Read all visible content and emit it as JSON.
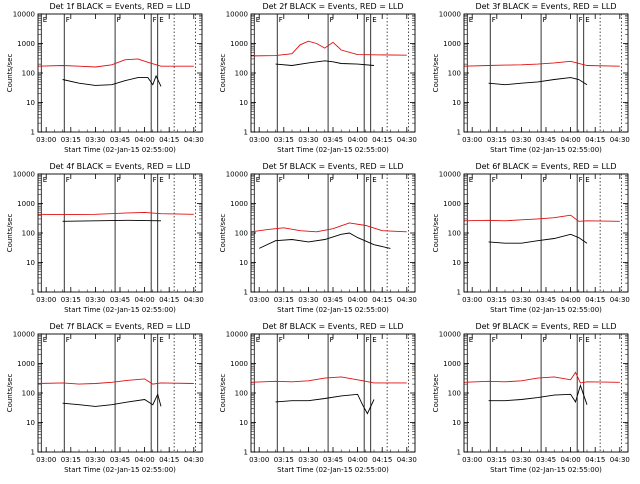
{
  "colors": {
    "events": "#000000",
    "lld": "#e01010",
    "background": "#ffffff"
  },
  "chart_data": [
    {
      "type": "line",
      "title": "Det 1f BLACK = Events, RED = LLD",
      "xlabel": "Start Time (02-Jan-15 02:55:00)",
      "ylabel": "Counts/sec",
      "x_ticks": [
        "03:00",
        "03:15",
        "03:30",
        "03:45",
        "04:00",
        "04:15",
        "04:30"
      ],
      "y_ticks": [
        "1",
        "10",
        "100",
        "1000",
        "10000"
      ],
      "xlim": [
        "02:55",
        "04:35"
      ],
      "ylim": [
        1,
        10000
      ],
      "yscale": "log",
      "series": [
        {
          "name": "Events",
          "x": [
            "03:10",
            "03:20",
            "03:30",
            "03:40",
            "03:48",
            "03:56",
            "04:02",
            "04:05",
            "04:07",
            "04:10"
          ],
          "y": [
            60,
            45,
            38,
            40,
            55,
            70,
            70,
            40,
            80,
            35
          ]
        },
        {
          "name": "LLD",
          "x": [
            "02:55",
            "03:10",
            "03:20",
            "03:30",
            "03:40",
            "03:48",
            "03:56",
            "04:02",
            "04:10",
            "04:30"
          ],
          "y": [
            170,
            180,
            170,
            160,
            190,
            280,
            300,
            230,
            170,
            170
          ]
        }
      ],
      "markers": [
        {
          "label": "E",
          "x": "02:57"
        },
        {
          "label": "F",
          "x": "03:11"
        },
        {
          "label": "F",
          "x": "03:42"
        },
        {
          "label": "F",
          "x": "04:04"
        },
        {
          "label": "E",
          "x": "04:08"
        }
      ],
      "dotted_x": [
        "04:18",
        "04:31"
      ]
    },
    {
      "type": "line",
      "title": "Det 2f BLACK = Events, RED = LLD",
      "xlabel": "Start Time (02-Jan-15 02:55:00)",
      "ylabel": "Counts/sec",
      "x_ticks": [
        "03:00",
        "03:15",
        "03:30",
        "03:45",
        "04:00",
        "04:15",
        "04:30"
      ],
      "y_ticks": [
        "1",
        "10",
        "100",
        "1000",
        "10000"
      ],
      "xlim": [
        "02:55",
        "04:35"
      ],
      "ylim": [
        1,
        10000
      ],
      "yscale": "log",
      "series": [
        {
          "name": "Events",
          "x": [
            "03:10",
            "03:20",
            "03:30",
            "03:40",
            "03:45",
            "03:50",
            "04:00",
            "04:10"
          ],
          "y": [
            200,
            180,
            220,
            260,
            240,
            210,
            200,
            180
          ]
        },
        {
          "name": "LLD",
          "x": [
            "02:55",
            "03:10",
            "03:20",
            "03:25",
            "03:30",
            "03:35",
            "03:40",
            "03:45",
            "03:50",
            "04:00",
            "04:30"
          ],
          "y": [
            380,
            390,
            450,
            900,
            1200,
            1000,
            700,
            1100,
            600,
            420,
            400
          ]
        }
      ],
      "markers": [
        {
          "label": "E",
          "x": "02:57"
        },
        {
          "label": "F",
          "x": "03:11"
        },
        {
          "label": "F",
          "x": "03:42"
        },
        {
          "label": "F",
          "x": "04:04"
        },
        {
          "label": "E",
          "x": "04:08"
        }
      ],
      "dotted_x": [
        "04:18",
        "04:31"
      ]
    },
    {
      "type": "line",
      "title": "Det 3f BLACK = Events, RED = LLD",
      "xlabel": "Start Time (02-Jan-15 02:55:00)",
      "ylabel": "Counts/sec",
      "x_ticks": [
        "03:00",
        "03:15",
        "03:30",
        "03:45",
        "04:00",
        "04:15",
        "04:30"
      ],
      "y_ticks": [
        "1",
        "10",
        "100",
        "1000",
        "10000"
      ],
      "xlim": [
        "02:55",
        "04:35"
      ],
      "ylim": [
        1,
        10000
      ],
      "yscale": "log",
      "series": [
        {
          "name": "Events",
          "x": [
            "03:10",
            "03:20",
            "03:30",
            "03:40",
            "03:50",
            "04:00",
            "04:05",
            "04:10"
          ],
          "y": [
            45,
            40,
            45,
            50,
            60,
            70,
            60,
            40
          ]
        },
        {
          "name": "LLD",
          "x": [
            "02:55",
            "03:10",
            "03:20",
            "03:30",
            "03:40",
            "03:50",
            "04:00",
            "04:10",
            "04:30"
          ],
          "y": [
            170,
            180,
            185,
            190,
            200,
            220,
            250,
            180,
            170
          ]
        }
      ],
      "markers": [
        {
          "label": "E",
          "x": "02:57"
        },
        {
          "label": "F",
          "x": "03:11"
        },
        {
          "label": "F",
          "x": "03:42"
        },
        {
          "label": "F",
          "x": "04:04"
        },
        {
          "label": "E",
          "x": "04:08"
        }
      ],
      "dotted_x": [
        "04:18",
        "04:31"
      ]
    },
    {
      "type": "line",
      "title": "Det 4f BLACK = Events, RED = LLD",
      "xlabel": "Start Time (02-Jan-15 02:55:00)",
      "ylabel": "Counts/sec",
      "x_ticks": [
        "03:00",
        "03:15",
        "03:30",
        "03:45",
        "04:00",
        "04:15",
        "04:30"
      ],
      "y_ticks": [
        "1",
        "10",
        "100",
        "1000",
        "10000"
      ],
      "xlim": [
        "02:55",
        "04:35"
      ],
      "ylim": [
        1,
        10000
      ],
      "yscale": "log",
      "series": [
        {
          "name": "Events",
          "x": [
            "03:10",
            "03:30",
            "03:50",
            "04:10"
          ],
          "y": [
            250,
            260,
            270,
            260
          ]
        },
        {
          "name": "LLD",
          "x": [
            "02:55",
            "03:10",
            "03:30",
            "03:50",
            "04:00",
            "04:10",
            "04:30"
          ],
          "y": [
            430,
            420,
            430,
            480,
            500,
            450,
            430
          ]
        }
      ],
      "markers": [
        {
          "label": "E",
          "x": "02:57"
        },
        {
          "label": "F",
          "x": "03:11"
        },
        {
          "label": "F",
          "x": "03:42"
        },
        {
          "label": "F",
          "x": "04:04"
        },
        {
          "label": "E",
          "x": "04:08"
        }
      ],
      "dotted_x": [
        "04:18",
        "04:31"
      ]
    },
    {
      "type": "line",
      "title": "Det 5f BLACK = Events, RED = LLD",
      "xlabel": "Start Time (02-Jan-15 02:55:00)",
      "ylabel": "Counts/sec",
      "x_ticks": [
        "03:00",
        "03:15",
        "03:30",
        "03:45",
        "04:00",
        "04:15",
        "04:30"
      ],
      "y_ticks": [
        "1",
        "10",
        "100",
        "1000",
        "10000"
      ],
      "xlim": [
        "02:55",
        "04:35"
      ],
      "ylim": [
        1,
        10000
      ],
      "yscale": "log",
      "series": [
        {
          "name": "Events",
          "x": [
            "03:00",
            "03:10",
            "03:20",
            "03:30",
            "03:40",
            "03:50",
            "03:55",
            "04:00",
            "04:10",
            "04:20"
          ],
          "y": [
            30,
            55,
            60,
            50,
            60,
            90,
            100,
            70,
            40,
            30
          ]
        },
        {
          "name": "LLD",
          "x": [
            "02:55",
            "03:05",
            "03:15",
            "03:25",
            "03:35",
            "03:45",
            "03:55",
            "04:05",
            "04:15",
            "04:30"
          ],
          "y": [
            110,
            130,
            150,
            120,
            110,
            140,
            220,
            180,
            120,
            110
          ]
        }
      ],
      "markers": [
        {
          "label": "E",
          "x": "02:57"
        },
        {
          "label": "F",
          "x": "03:11"
        },
        {
          "label": "F",
          "x": "03:42"
        },
        {
          "label": "F",
          "x": "04:04"
        },
        {
          "label": "E",
          "x": "04:08"
        }
      ],
      "dotted_x": [
        "04:18",
        "04:31"
      ]
    },
    {
      "type": "line",
      "title": "Det 6f BLACK = Events, RED = LLD",
      "xlabel": "Start Time (02-Jan-15 02:55:00)",
      "ylabel": "Counts/sec",
      "x_ticks": [
        "03:00",
        "03:15",
        "03:30",
        "03:45",
        "04:00",
        "04:15",
        "04:30"
      ],
      "y_ticks": [
        "1",
        "10",
        "100",
        "1000",
        "10000"
      ],
      "xlim": [
        "02:55",
        "04:35"
      ],
      "ylim": [
        1,
        10000
      ],
      "yscale": "log",
      "series": [
        {
          "name": "Events",
          "x": [
            "03:10",
            "03:20",
            "03:30",
            "03:40",
            "03:50",
            "04:00",
            "04:05",
            "04:10"
          ],
          "y": [
            50,
            45,
            45,
            55,
            65,
            90,
            70,
            45
          ]
        },
        {
          "name": "LLD",
          "x": [
            "02:55",
            "03:10",
            "03:20",
            "03:30",
            "03:40",
            "03:50",
            "04:00",
            "04:05",
            "04:10",
            "04:30"
          ],
          "y": [
            260,
            270,
            260,
            280,
            300,
            330,
            400,
            250,
            260,
            250
          ]
        }
      ],
      "markers": [
        {
          "label": "E",
          "x": "02:57"
        },
        {
          "label": "F",
          "x": "03:11"
        },
        {
          "label": "F",
          "x": "03:42"
        },
        {
          "label": "F",
          "x": "04:04"
        },
        {
          "label": "E",
          "x": "04:08"
        }
      ],
      "dotted_x": [
        "04:18",
        "04:31"
      ]
    },
    {
      "type": "line",
      "title": "Det 7f BLACK = Events, RED = LLD",
      "xlabel": "Start Time (02-Jan-15 02:55:00)",
      "ylabel": "Counts/sec",
      "x_ticks": [
        "03:00",
        "03:15",
        "03:30",
        "03:45",
        "04:00",
        "04:15",
        "04:30"
      ],
      "y_ticks": [
        "1",
        "10",
        "100",
        "1000",
        "10000"
      ],
      "xlim": [
        "02:55",
        "04:35"
      ],
      "ylim": [
        1,
        10000
      ],
      "yscale": "log",
      "series": [
        {
          "name": "Events",
          "x": [
            "03:10",
            "03:20",
            "03:30",
            "03:40",
            "03:50",
            "04:00",
            "04:05",
            "04:08",
            "04:10"
          ],
          "y": [
            45,
            40,
            35,
            40,
            50,
            60,
            40,
            90,
            35
          ]
        },
        {
          "name": "LLD",
          "x": [
            "02:55",
            "03:10",
            "03:20",
            "03:30",
            "03:40",
            "03:50",
            "04:00",
            "04:05",
            "04:10",
            "04:30"
          ],
          "y": [
            210,
            220,
            200,
            210,
            230,
            270,
            300,
            200,
            220,
            210
          ]
        }
      ],
      "markers": [
        {
          "label": "E",
          "x": "02:57"
        },
        {
          "label": "F",
          "x": "03:11"
        },
        {
          "label": "F",
          "x": "03:42"
        },
        {
          "label": "F",
          "x": "04:04"
        },
        {
          "label": "E",
          "x": "04:08"
        }
      ],
      "dotted_x": [
        "04:18",
        "04:31"
      ]
    },
    {
      "type": "line",
      "title": "Det 8f BLACK = Events, RED = LLD",
      "xlabel": "Start Time (02-Jan-15 02:55:00)",
      "ylabel": "Counts/sec",
      "x_ticks": [
        "03:00",
        "03:15",
        "03:30",
        "03:45",
        "04:00",
        "04:15",
        "04:30"
      ],
      "y_ticks": [
        "1",
        "10",
        "100",
        "1000",
        "10000"
      ],
      "xlim": [
        "02:55",
        "04:35"
      ],
      "ylim": [
        1,
        10000
      ],
      "yscale": "log",
      "series": [
        {
          "name": "Events",
          "x": [
            "03:10",
            "03:20",
            "03:30",
            "03:40",
            "03:50",
            "04:00",
            "04:03",
            "04:06",
            "04:10"
          ],
          "y": [
            50,
            55,
            55,
            65,
            80,
            90,
            40,
            20,
            60
          ]
        },
        {
          "name": "LLD",
          "x": [
            "02:55",
            "03:10",
            "03:20",
            "03:30",
            "03:40",
            "03:50",
            "04:00",
            "04:05",
            "04:10",
            "04:30"
          ],
          "y": [
            230,
            250,
            240,
            260,
            320,
            350,
            280,
            250,
            220,
            220
          ]
        }
      ],
      "markers": [
        {
          "label": "E",
          "x": "02:57"
        },
        {
          "label": "F",
          "x": "03:11"
        },
        {
          "label": "F",
          "x": "03:42"
        },
        {
          "label": "F",
          "x": "04:04"
        },
        {
          "label": "E",
          "x": "04:08"
        }
      ],
      "dotted_x": [
        "04:18",
        "04:31"
      ]
    },
    {
      "type": "line",
      "title": "Det 9f BLACK = Events, RED = LLD",
      "xlabel": "Start Time (02-Jan-15 02:55:00)",
      "ylabel": "Counts/sec",
      "x_ticks": [
        "03:00",
        "03:15",
        "03:30",
        "03:45",
        "04:00",
        "04:15",
        "04:30"
      ],
      "y_ticks": [
        "1",
        "10",
        "100",
        "1000",
        "10000"
      ],
      "xlim": [
        "02:55",
        "04:35"
      ],
      "ylim": [
        1,
        10000
      ],
      "yscale": "log",
      "series": [
        {
          "name": "Events",
          "x": [
            "03:10",
            "03:20",
            "03:30",
            "03:40",
            "03:50",
            "04:00",
            "04:03",
            "04:06",
            "04:10"
          ],
          "y": [
            55,
            55,
            60,
            70,
            85,
            90,
            50,
            180,
            40
          ]
        },
        {
          "name": "LLD",
          "x": [
            "02:55",
            "03:10",
            "03:20",
            "03:30",
            "03:40",
            "03:50",
            "04:00",
            "04:03",
            "04:06",
            "04:10",
            "04:30"
          ],
          "y": [
            230,
            250,
            240,
            260,
            320,
            350,
            280,
            500,
            220,
            240,
            230
          ]
        }
      ],
      "markers": [
        {
          "label": "E",
          "x": "02:57"
        },
        {
          "label": "F",
          "x": "03:11"
        },
        {
          "label": "F",
          "x": "03:42"
        },
        {
          "label": "F",
          "x": "04:04"
        },
        {
          "label": "E",
          "x": "04:08"
        }
      ],
      "dotted_x": [
        "04:18",
        "04:31"
      ]
    }
  ]
}
